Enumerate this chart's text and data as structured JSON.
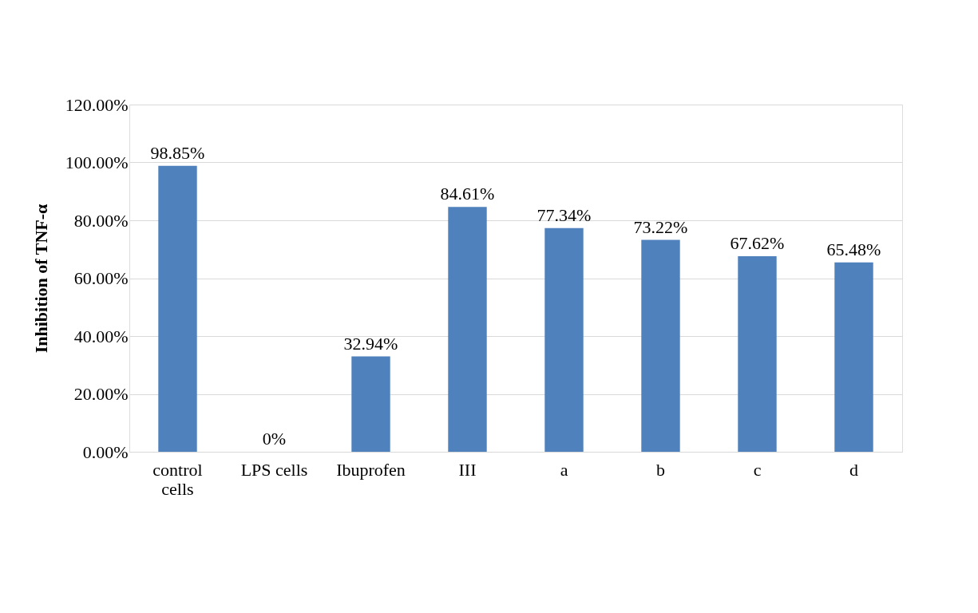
{
  "chart_data": {
    "type": "bar",
    "ylabel": "Inhibition of TNF-α",
    "categories": [
      "control cells",
      "LPS cells",
      "Ibuprofen",
      "III",
      "a",
      "b",
      "c",
      "d"
    ],
    "values": [
      98.85,
      0,
      32.94,
      84.61,
      77.34,
      73.22,
      67.62,
      65.48
    ],
    "value_labels": [
      "98.85%",
      "0%",
      "32.94%",
      "84.61%",
      "77.34%",
      "73.22%",
      "67.62%",
      "65.48%"
    ],
    "color": "#4f81bd",
    "ylim": [
      0,
      120
    ],
    "yticks": [
      {
        "value": 0,
        "label": "0.00%"
      },
      {
        "value": 20,
        "label": "20.00%"
      },
      {
        "value": 40,
        "label": "40.00%"
      },
      {
        "value": 60,
        "label": "60.00%"
      },
      {
        "value": 80,
        "label": "80.00%"
      },
      {
        "value": 100,
        "label": "100.00%"
      },
      {
        "value": 120,
        "label": "120.00%"
      }
    ],
    "grid": "y"
  }
}
